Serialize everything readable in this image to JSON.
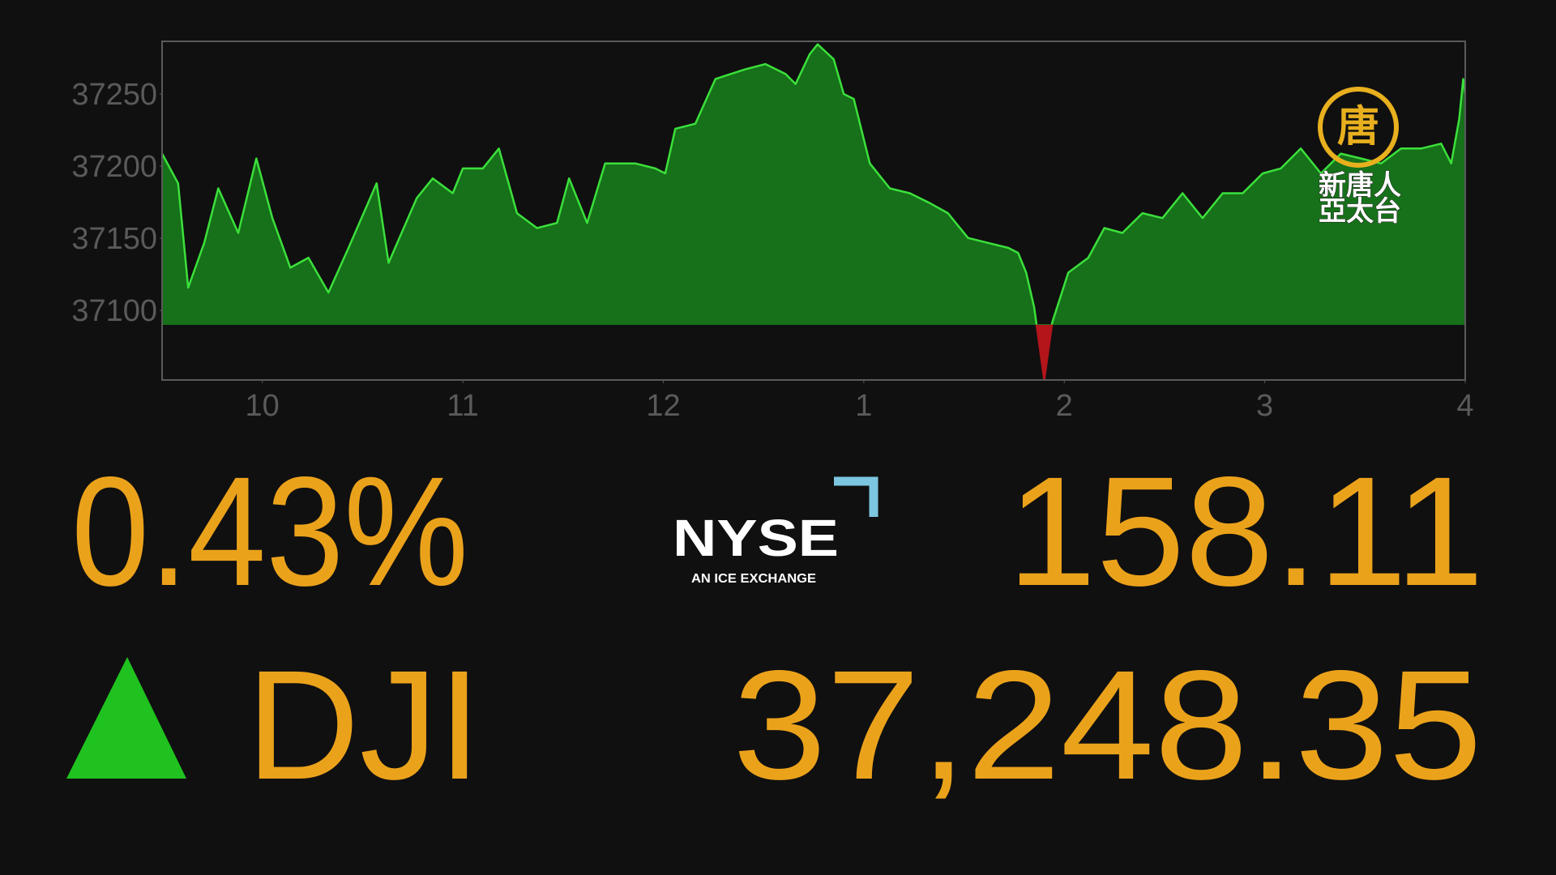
{
  "chart_data": {
    "type": "area",
    "x": [
      9.5,
      9.58,
      9.63,
      9.71,
      9.78,
      9.88,
      9.97,
      10.05,
      10.14,
      10.23,
      10.33,
      10.43,
      10.57,
      10.63,
      10.77,
      10.85,
      10.95,
      11.0,
      11.1,
      11.18,
      11.27,
      11.37,
      11.47,
      11.53,
      11.62,
      11.71,
      11.86,
      11.96,
      12.01,
      12.06,
      12.16,
      12.26,
      12.41,
      12.51,
      12.61,
      12.66,
      12.73,
      12.77,
      12.85,
      12.9,
      12.95,
      13.03,
      13.13,
      13.23,
      13.33,
      13.42,
      13.52,
      13.62,
      13.72,
      13.77,
      13.81,
      13.85,
      13.9,
      13.94,
      14.02,
      14.12,
      14.2,
      14.29,
      14.39,
      14.49,
      14.59,
      14.69,
      14.79,
      14.89,
      14.99,
      15.08,
      15.18,
      15.28,
      15.38,
      15.48,
      15.58,
      15.68,
      15.78,
      15.88,
      15.93,
      15.97,
      15.99,
      16.0
    ],
    "values": [
      37208.7,
      37188.1,
      37115.8,
      37146.8,
      37184.6,
      37153.7,
      37205.3,
      37164,
      37129.6,
      37136.5,
      37112.4,
      37143.4,
      37188.1,
      37133,
      37177.8,
      37191.5,
      37181.2,
      37198.4,
      37198.4,
      37212.2,
      37167.4,
      37157.1,
      37160.6,
      37191.5,
      37160.6,
      37201.9,
      37201.9,
      37198.4,
      37195,
      37225.9,
      37229.4,
      37260.4,
      37267.2,
      37270.7,
      37263.8,
      37256.9,
      37277.6,
      37284.4,
      37274.1,
      37250,
      37246.6,
      37201.9,
      37184.6,
      37181.2,
      37174.3,
      37167.4,
      37150.2,
      37146.8,
      37143.4,
      37139.9,
      37126.2,
      37102.1,
      37051.8,
      37091.7,
      37126.2,
      37136.5,
      37157.1,
      37153.7,
      37167.4,
      37164,
      37181.2,
      37164,
      37181.2,
      37181.2,
      37195,
      37198.4,
      37212.2,
      37195,
      37208.7,
      37205.3,
      37201.9,
      37212.2,
      37212.2,
      37215.6,
      37201.9,
      37232.8,
      37260.4,
      37250
    ],
    "baseline": 37090.24,
    "color": "#3be03b",
    "fill_color": "#17701a",
    "negative_color": "#b3151b",
    "xlim": [
      9.5,
      16
    ],
    "ylim": [
      37051.8,
      37286.5
    ],
    "xticks": [
      10,
      11,
      12,
      {
        "value": 13,
        "label": "1"
      },
      {
        "value": 14,
        "label": "2"
      },
      {
        "value": 15,
        "label": "3"
      },
      {
        "value": 16,
        "label": "4"
      }
    ],
    "yticks": [
      37100,
      37150,
      37200,
      37250
    ],
    "grid": false
  },
  "ticker": {
    "change_percent": "0.43%",
    "change_points": "158.11",
    "symbol": "DJI",
    "price": "37,248.35"
  },
  "exchange_logo": {
    "name": "NYSE",
    "tagline": "AN ICE EXCHANGE"
  },
  "channel_logo": {
    "emblem": "唐",
    "line1": "新唐人",
    "line2": "亞太台"
  }
}
